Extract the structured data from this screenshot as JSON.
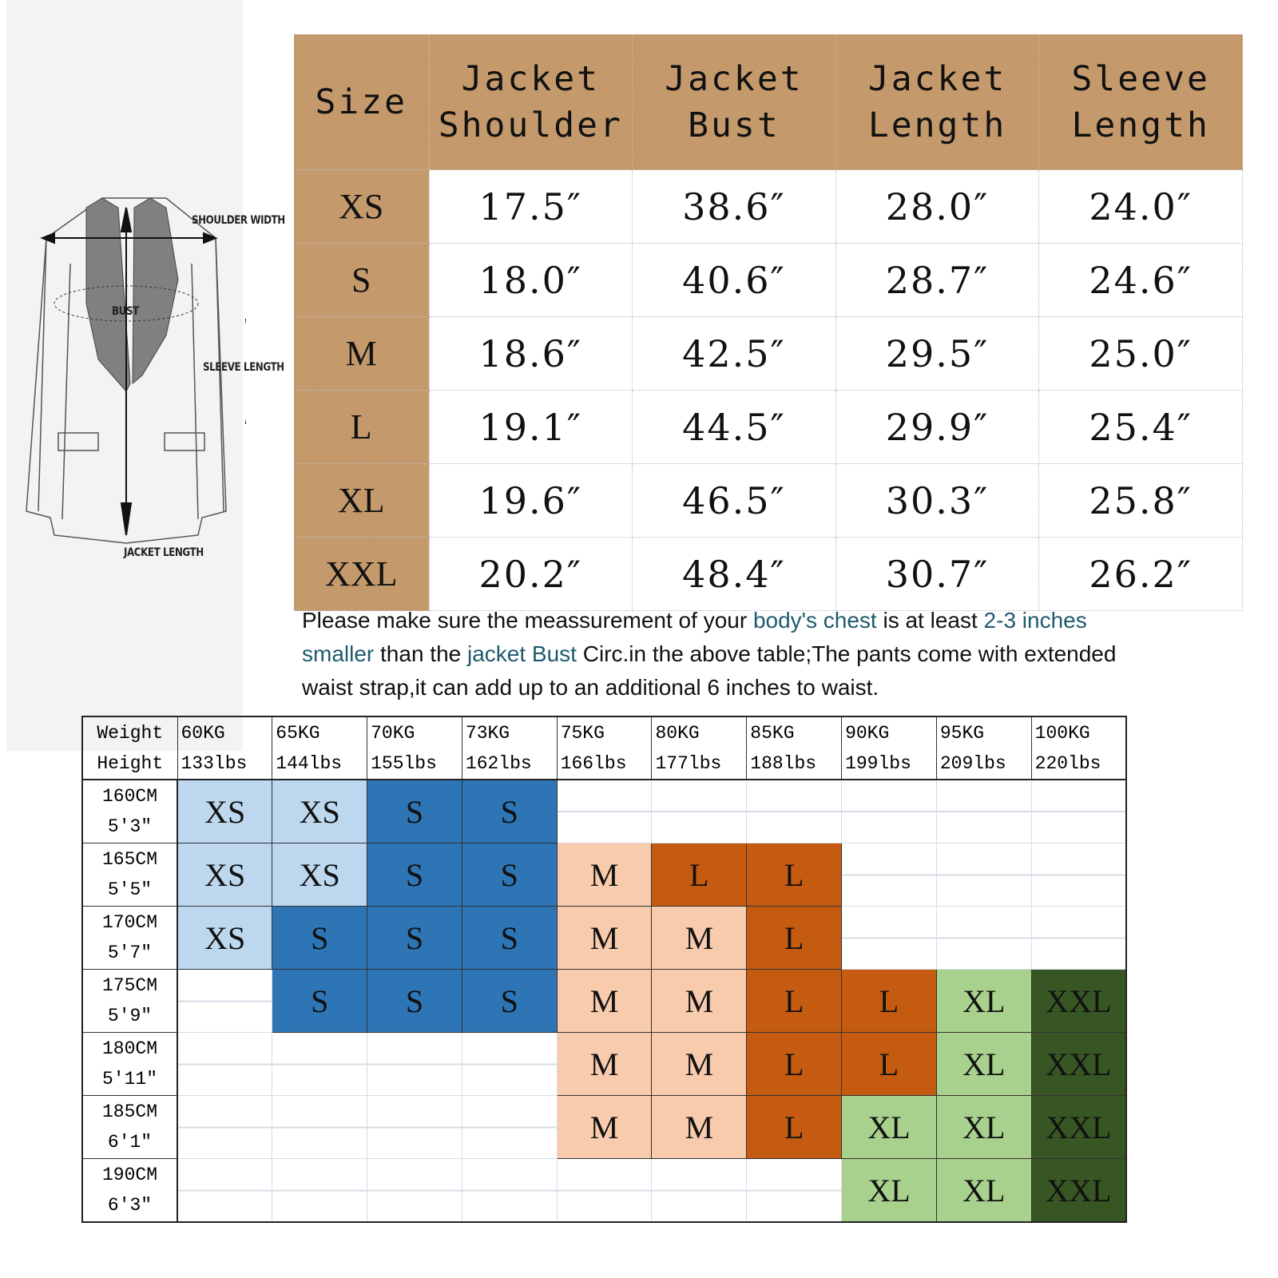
{
  "diagram": {
    "labels": {
      "shoulder": "SHOULDER WIDTH",
      "bust": "BUST",
      "sleeve": "SLEEVE LENGTH",
      "length": "JACKET LENGTH"
    }
  },
  "size_table": {
    "headers": [
      "Size",
      "Jacket Shoulder",
      "Jacket Bust",
      "Jacket Length",
      "Sleeve Length"
    ],
    "rows": [
      [
        "XS",
        "17.5″",
        "38.6″",
        "28.0″",
        "24.0″"
      ],
      [
        "S",
        "18.0″",
        "40.6″",
        "28.7″",
        "24.6″"
      ],
      [
        "M",
        "18.6″",
        "42.5″",
        "29.5″",
        "25.0″"
      ],
      [
        "L",
        "19.1″",
        "44.5″",
        "29.9″",
        "25.4″"
      ],
      [
        "XL",
        "19.6″",
        "46.5″",
        "30.3″",
        "25.8″"
      ],
      [
        "XXL",
        "20.2″",
        "48.4″",
        "30.7″",
        "26.2″"
      ]
    ],
    "header_color": "#c49a6c"
  },
  "note": {
    "lines": [
      [
        {
          "t": "Please make sure the meassurement of your "
        },
        {
          "t": "body's chest",
          "hl": true
        },
        {
          "t": " is at least "
        },
        {
          "t": "2-3 inches",
          "hl": true
        }
      ],
      [
        {
          "t": "smaller",
          "hl": true
        },
        {
          "t": " than the "
        },
        {
          "t": "jacket Bust",
          "hl": true
        },
        {
          "t": " Circ.in the above table;The pants come with extended"
        }
      ],
      [
        {
          "t": "waist strap,it can add up to an additional 6 inches to waist."
        }
      ]
    ],
    "highlight_color": "#1f5a6e"
  },
  "fit_table": {
    "corner": [
      "Weight",
      "Height"
    ],
    "weights": [
      [
        "60KG",
        "133lbs"
      ],
      [
        "65KG",
        "144lbs"
      ],
      [
        "70KG",
        "155lbs"
      ],
      [
        "73KG",
        "162lbs"
      ],
      [
        "75KG",
        "166lbs"
      ],
      [
        "80KG",
        "177lbs"
      ],
      [
        "85KG",
        "188lbs"
      ],
      [
        "90KG",
        "199lbs"
      ],
      [
        "95KG",
        "209lbs"
      ],
      [
        "100KG",
        "220lbs"
      ]
    ],
    "heights": [
      [
        "160CM",
        "5'3″"
      ],
      [
        "165CM",
        "5'5″"
      ],
      [
        "170CM",
        "5'7″"
      ],
      [
        "175CM",
        "5'9″"
      ],
      [
        "180CM",
        "5'11″"
      ],
      [
        "185CM",
        "6'1″"
      ],
      [
        "190CM",
        "6'3″"
      ]
    ],
    "grid": [
      [
        "XS",
        "XS",
        "S",
        "S",
        "",
        "",
        "",
        "",
        "",
        ""
      ],
      [
        "XS",
        "XS",
        "S",
        "S",
        "M",
        "L",
        "L",
        "",
        "",
        ""
      ],
      [
        "XS",
        "S",
        "S",
        "S",
        "M",
        "M",
        "L",
        "",
        "",
        ""
      ],
      [
        "",
        "S",
        "S",
        "S",
        "M",
        "M",
        "L",
        "L",
        "XL",
        "XXL"
      ],
      [
        "",
        "",
        "",
        "",
        "M",
        "M",
        "L",
        "L",
        "XL",
        "XXL"
      ],
      [
        "",
        "",
        "",
        "",
        "M",
        "M",
        "L",
        "XL",
        "XL",
        "XXL"
      ],
      [
        "",
        "",
        "",
        "",
        "",
        "",
        "",
        "XL",
        "XL",
        "XXL"
      ]
    ],
    "colors": {
      "XS": "#bdd7ee",
      "S": "#2e75b6",
      "M": "#f8cbad",
      "L": "#c55a11",
      "XL": "#a9d18e",
      "XXL": "#375623"
    }
  }
}
